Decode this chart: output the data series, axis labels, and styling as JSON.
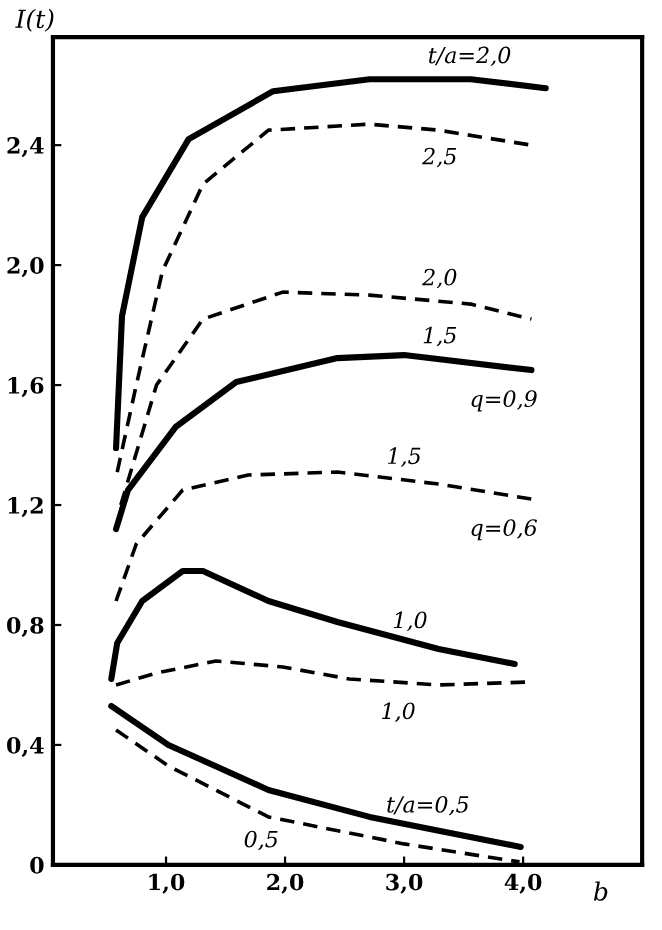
{
  "chart_data": {
    "type": "line",
    "xlabel": "b",
    "ylabel": "I(t)",
    "xlim": [
      0.05,
      5.0
    ],
    "ylim": [
      0,
      2.76
    ],
    "xticks": [
      {
        "value": 1.0,
        "label": "1,0"
      },
      {
        "value": 2.0,
        "label": "2,0"
      },
      {
        "value": 3.0,
        "label": "3,0"
      },
      {
        "value": 4.0,
        "label": "4,0"
      }
    ],
    "yticks": [
      0,
      {
        "value": 0.4,
        "label": "0,4"
      },
      {
        "value": 0.8,
        "label": "0,8"
      },
      {
        "value": 1.2,
        "label": "1,2"
      },
      {
        "value": 1.6,
        "label": "1,6"
      },
      {
        "value": 2.0,
        "label": "2,0"
      },
      {
        "value": 2.4,
        "label": "2,4"
      }
    ],
    "grid": false,
    "legend": false,
    "marker": "none",
    "series": [
      {
        "name": "t/a=2,0",
        "color": "#000000",
        "line_style": "solid",
        "x": [
          0.58,
          0.63,
          0.8,
          1.19,
          1.9,
          2.71,
          3.56,
          4.19
        ],
        "values": [
          1.39,
          1.83,
          2.16,
          2.42,
          2.58,
          2.62,
          2.62,
          2.59
        ]
      },
      {
        "name": "2,5",
        "color": "#000000",
        "line_style": "dashed",
        "x": [
          0.59,
          0.75,
          0.97,
          1.31,
          1.86,
          2.71,
          3.29,
          4.07
        ],
        "values": [
          1.31,
          1.6,
          1.98,
          2.27,
          2.45,
          2.47,
          2.45,
          2.4
        ]
      },
      {
        "name": "2,0",
        "color": "#000000",
        "line_style": "dashed",
        "x": [
          0.62,
          0.92,
          1.31,
          1.98,
          2.71,
          3.56,
          4.07
        ],
        "values": [
          1.2,
          1.6,
          1.82,
          1.91,
          1.9,
          1.87,
          1.82
        ]
      },
      {
        "name": "1,5",
        "color": "#000000",
        "line_style": "solid",
        "x": [
          0.58,
          0.68,
          1.08,
          1.59,
          2.44,
          3.0,
          4.07
        ],
        "values": [
          1.12,
          1.25,
          1.46,
          1.61,
          1.69,
          1.7,
          1.65
        ]
      },
      {
        "name": "1,5",
        "color": "#000000",
        "line_style": "dashed",
        "x": [
          0.58,
          0.75,
          1.14,
          1.69,
          2.44,
          3.29,
          4.07
        ],
        "values": [
          0.88,
          1.07,
          1.25,
          1.3,
          1.31,
          1.27,
          1.22
        ]
      },
      {
        "name": "1,0",
        "color": "#000000",
        "line_style": "solid",
        "x": [
          0.54,
          0.59,
          0.8,
          1.14,
          1.31,
          1.86,
          2.44,
          3.29,
          3.93
        ],
        "values": [
          0.62,
          0.74,
          0.88,
          0.98,
          0.98,
          0.88,
          0.81,
          0.72,
          0.67
        ]
      },
      {
        "name": "1,0",
        "color": "#000000",
        "line_style": "dashed",
        "x": [
          0.58,
          0.92,
          1.42,
          1.98,
          2.54,
          3.29,
          4.05
        ],
        "values": [
          0.6,
          0.64,
          0.68,
          0.66,
          0.62,
          0.6,
          0.61
        ]
      },
      {
        "name": "t/a=0,5",
        "color": "#000000",
        "line_style": "solid",
        "x": [
          0.54,
          1.02,
          1.86,
          2.71,
          3.98
        ],
        "values": [
          0.53,
          0.4,
          0.25,
          0.16,
          0.06
        ]
      },
      {
        "name": "0,5",
        "color": "#000000",
        "line_style": "dashed",
        "x": [
          0.58,
          1.02,
          1.86,
          3.0,
          3.97
        ],
        "values": [
          0.45,
          0.33,
          0.16,
          0.07,
          0.01
        ]
      }
    ],
    "annotations": [
      {
        "text": "q=0,9",
        "x": 4.07,
        "y": 1.65
      },
      {
        "text": "q=0,6",
        "x": 4.07,
        "y": 1.22
      }
    ]
  }
}
